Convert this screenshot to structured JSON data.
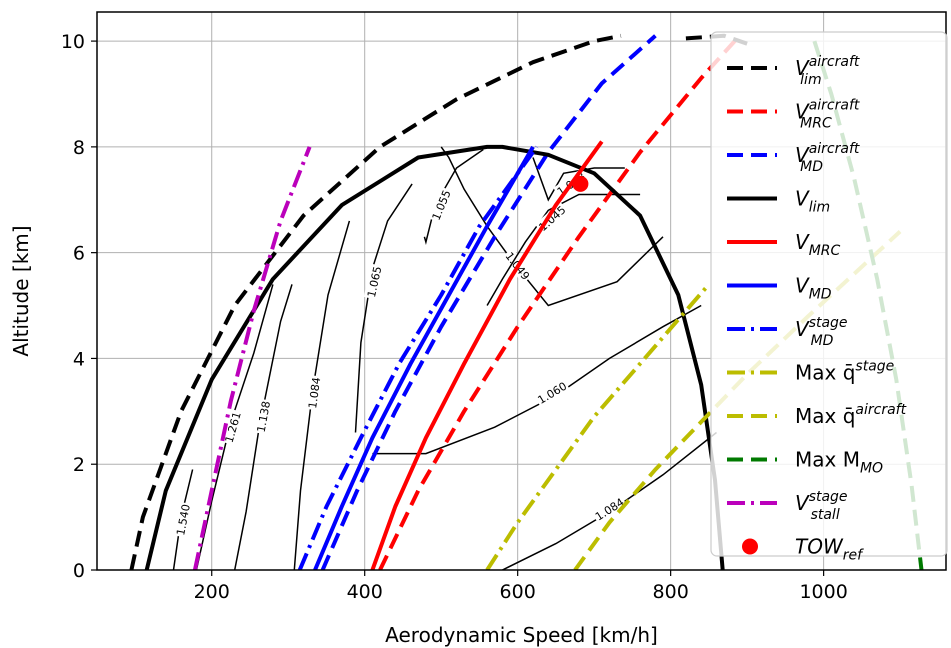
{
  "chart_data": {
    "type": "line",
    "xlabel": "Aerodynamic Speed [km/h]",
    "ylabel": "Altitude [km]",
    "xlim": [
      50,
      1160
    ],
    "ylim": [
      0,
      10.55
    ],
    "x_ticks": [
      "200",
      "400",
      "600",
      "800",
      "1000"
    ],
    "x_tick_values": [
      200,
      400,
      600,
      800,
      1000
    ],
    "y_ticks": [
      "0",
      "2",
      "4",
      "6",
      "8",
      "10"
    ],
    "y_tick_values": [
      0,
      2,
      4,
      6,
      8,
      10
    ],
    "grid": true,
    "legend_placement": "right",
    "series": [
      {
        "name": "V_lim^aircraft",
        "color": "#000000",
        "style": "dashed",
        "x": [
          95,
          110,
          160,
          230,
          320,
          420,
          520,
          620,
          700,
          735
        ],
        "y": [
          0,
          1,
          3,
          5,
          6.7,
          8.0,
          8.9,
          9.6,
          10.0,
          10.1
        ]
      },
      {
        "name": "V_MRC^aircraft",
        "color": "#ff0000",
        "style": "dashed",
        "x": [
          420,
          470,
          530,
          600,
          680,
          760,
          840,
          890
        ],
        "y": [
          0,
          1.5,
          3.0,
          4.6,
          6.3,
          7.9,
          9.3,
          10.1
        ]
      },
      {
        "name": "V_MD^aircraft",
        "color": "#0000ff",
        "style": "dashed",
        "x": [
          345,
          390,
          440,
          500,
          570,
          640,
          710,
          780
        ],
        "y": [
          0,
          1.5,
          3.0,
          4.6,
          6.3,
          7.9,
          9.2,
          10.1
        ]
      },
      {
        "name": "V_lim",
        "color": "#000000",
        "style": "solid",
        "x": [
          115,
          140,
          200,
          280,
          370,
          470,
          560,
          580,
          640,
          700,
          760,
          810,
          840,
          858,
          868
        ],
        "y": [
          0,
          1.5,
          3.6,
          5.5,
          6.9,
          7.8,
          8.0,
          8.0,
          7.85,
          7.5,
          6.7,
          5.2,
          3.5,
          1.7,
          0
        ]
      },
      {
        "name": "V_MRC",
        "color": "#ff0000",
        "style": "solid",
        "x": [
          410,
          440,
          480,
          530,
          590,
          650,
          690,
          710
        ],
        "y": [
          0,
          1.2,
          2.5,
          3.9,
          5.5,
          6.9,
          7.7,
          8.1
        ]
      },
      {
        "name": "V_MD",
        "color": "#0000ff",
        "style": "solid",
        "x": [
          335,
          370,
          410,
          460,
          510,
          560,
          600,
          620
        ],
        "y": [
          0,
          1.2,
          2.5,
          3.9,
          5.2,
          6.5,
          7.5,
          8.0
        ]
      },
      {
        "name": "V_MD^stage",
        "color": "#0000ff",
        "style": "dashdot",
        "x": [
          315,
          350,
          395,
          445,
          500,
          550,
          600,
          625
        ],
        "y": [
          0,
          1.2,
          2.5,
          3.9,
          5.2,
          6.5,
          7.5,
          8.0
        ]
      },
      {
        "name": "Max q^stage",
        "color": "#bcbd00",
        "style": "dashdot",
        "x": [
          560,
          600,
          650,
          700,
          760,
          820,
          850
        ],
        "y": [
          0,
          0.9,
          1.9,
          2.9,
          3.9,
          4.9,
          5.4
        ]
      },
      {
        "name": "Max q^aircraft",
        "color": "#bcbd00",
        "style": "dashed",
        "x": [
          675,
          720,
          780,
          840,
          900,
          980,
          1040,
          1100
        ],
        "y": [
          0,
          0.9,
          1.9,
          2.8,
          3.7,
          4.8,
          5.6,
          6.4
        ]
      },
      {
        "name": "Max M_MO",
        "color": "#007a00",
        "style": "dashed",
        "x": [
          988,
          1010,
          1040,
          1070,
          1095,
          1115,
          1128
        ],
        "y": [
          10.0,
          9.0,
          7.4,
          5.5,
          3.6,
          1.6,
          0
        ]
      },
      {
        "name": "V_stall^stage",
        "color": "#bb00bb",
        "style": "dashdot",
        "x": [
          178,
          200,
          225,
          255,
          290,
          328
        ],
        "y": [
          0,
          1.5,
          3.2,
          4.9,
          6.6,
          8.0
        ]
      },
      {
        "name": "V_lim^aircraft (descent)",
        "color": "#000000",
        "style": "dashed",
        "x": [
          820,
          870,
          900
        ],
        "y": [
          10.05,
          10.1,
          9.95
        ]
      }
    ],
    "points": [
      {
        "name": "TOW_ref",
        "color": "#ff0000",
        "x": 682,
        "y": 7.3
      }
    ],
    "contours": [
      {
        "label": "1.540",
        "x": [
          150,
          160,
          175
        ],
        "y": [
          0,
          1.0,
          1.9
        ]
      },
      {
        "label": "1.261",
        "x": [
          180,
          200,
          225,
          255,
          280
        ],
        "y": [
          0,
          1.3,
          2.8,
          4.1,
          5.4
        ]
      },
      {
        "label": "1.138",
        "x": [
          230,
          245,
          262,
          290,
          305
        ],
        "y": [
          0,
          1.1,
          2.7,
          4.7,
          5.4
        ]
      },
      {
        "label": "1.084",
        "x": [
          308,
          316,
          332,
          352,
          380
        ],
        "y": [
          0,
          1.5,
          3.4,
          5.2,
          6.6
        ]
      },
      {
        "label": "1.065",
        "x": [
          388,
          395,
          410,
          430,
          462
        ],
        "y": [
          2.6,
          4.3,
          5.7,
          6.6,
          7.3
        ]
      },
      {
        "label": "1.055",
        "x": [
          478,
          480,
          492,
          520,
          555
        ],
        "y": [
          6.3,
          6.2,
          6.9,
          7.6,
          7.95
        ]
      },
      {
        "label": "1.049",
        "x": [
          500,
          510,
          530,
          560,
          595,
          640,
          730,
          790
        ],
        "y": [
          8.0,
          7.8,
          7.2,
          6.5,
          5.8,
          5.0,
          5.45,
          6.3
        ]
      },
      {
        "label": "1.045",
        "x": [
          560,
          580,
          610,
          640,
          680,
          720,
          760
        ],
        "y": [
          5.0,
          5.5,
          6.2,
          6.8,
          7.1,
          7.1,
          7.1
        ]
      },
      {
        "label": "1.043",
        "x": [
          620,
          640,
          660,
          700,
          740
        ],
        "y": [
          7.8,
          7.0,
          7.5,
          7.6,
          7.6
        ]
      },
      {
        "label": "1.060",
        "x": [
          410,
          480,
          570,
          650,
          720,
          790,
          840
        ],
        "y": [
          2.2,
          2.2,
          2.7,
          3.3,
          4.0,
          4.6,
          5.0
        ]
      },
      {
        "label": "1.084",
        "x": [
          580,
          650,
          720,
          790,
          860
        ],
        "y": [
          0,
          0.5,
          1.1,
          1.8,
          2.6
        ]
      }
    ],
    "legend": [
      {
        "label_base": "V",
        "label_sub": "lim",
        "label_sup": "aircraft",
        "color": "#000000",
        "style": "dashed"
      },
      {
        "label_base": "V",
        "label_sub": "MRC",
        "label_sup": "aircraft",
        "color": "#ff0000",
        "style": "dashed"
      },
      {
        "label_base": "V",
        "label_sub": "MD",
        "label_sup": "aircraft",
        "color": "#0000ff",
        "style": "dashed"
      },
      {
        "label_base": "V",
        "label_sub": "lim",
        "label_sup": "",
        "color": "#000000",
        "style": "solid"
      },
      {
        "label_base": "V",
        "label_sub": "MRC",
        "label_sup": "",
        "color": "#ff0000",
        "style": "solid"
      },
      {
        "label_base": "V",
        "label_sub": "MD",
        "label_sup": "",
        "color": "#0000ff",
        "style": "solid"
      },
      {
        "label_base": "V",
        "label_sub": "MD",
        "label_sup": "stage",
        "color": "#0000ff",
        "style": "dashdot"
      },
      {
        "label_base": "Max q̄",
        "label_sub": "",
        "label_sup": "stage",
        "color": "#bcbd00",
        "style": "dashdot"
      },
      {
        "label_base": "Max q̄",
        "label_sub": "",
        "label_sup": "aircraft",
        "color": "#bcbd00",
        "style": "dashed"
      },
      {
        "label_base": "Max M",
        "label_sub": "MO",
        "label_sup": "",
        "color": "#007a00",
        "style": "dashed"
      },
      {
        "label_base": "V",
        "label_sub": "stall",
        "label_sup": "stage",
        "color": "#bb00bb",
        "style": "dashdot"
      },
      {
        "label_base": "TOW",
        "label_sub": "ref",
        "label_sup": "",
        "color": "#ff0000",
        "style": "marker"
      }
    ]
  }
}
